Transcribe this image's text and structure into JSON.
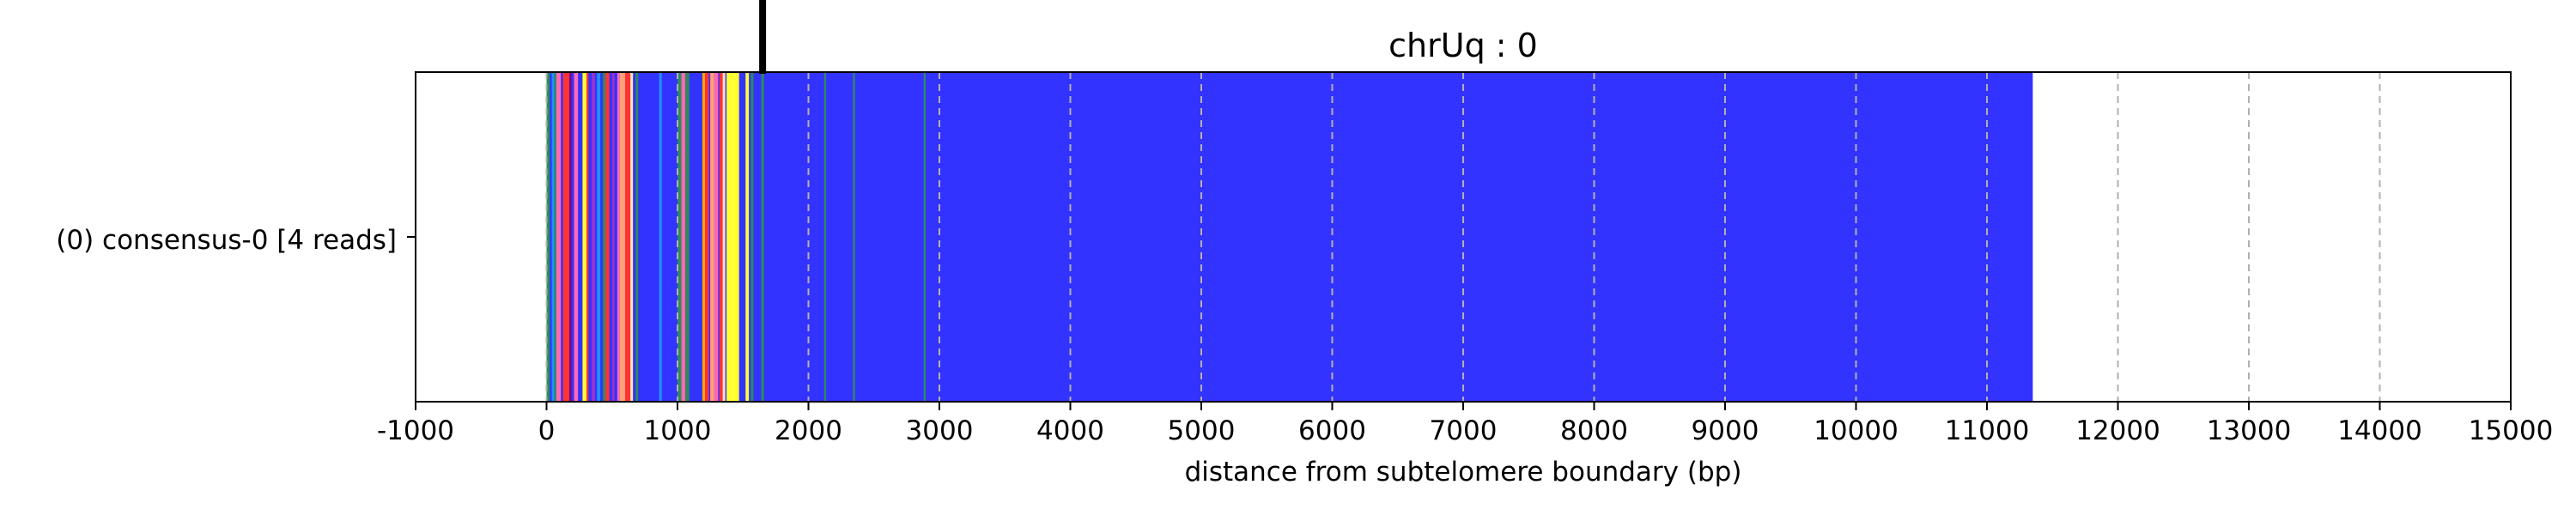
{
  "chart_data": {
    "type": "heatmap",
    "title": "chrUq : 0",
    "xlabel": "distance from subtelomere boundary (bp)",
    "ylabel": "",
    "xlim": [
      -1000,
      15000
    ],
    "xticks": [
      -1000,
      0,
      1000,
      2000,
      3000,
      4000,
      5000,
      6000,
      7000,
      8000,
      9000,
      10000,
      11000,
      12000,
      13000,
      14000,
      15000
    ],
    "tick_labels": [
      "-1000",
      "0",
      "1000",
      "2000",
      "3000",
      "4000",
      "5000",
      "6000",
      "7000",
      "8000",
      "9000",
      "10000",
      "11000",
      "12000",
      "13000",
      "14000",
      "15000"
    ],
    "vertical_gridlines": true,
    "rows": [
      {
        "label": "(0) consensus-0 [4 reads]"
      }
    ],
    "boundary_marker_x": 1650,
    "background_color": "#3333ff",
    "background_range": [
      0,
      11350
    ],
    "segments": [
      {
        "start": 0,
        "end": 25,
        "color": "#2e8b57"
      },
      {
        "start": 40,
        "end": 60,
        "color": "#1e90ff"
      },
      {
        "start": 60,
        "end": 75,
        "color": "#2e8b57"
      },
      {
        "start": 75,
        "end": 110,
        "color": "#ff69b4"
      },
      {
        "start": 110,
        "end": 125,
        "color": "#3333ff"
      },
      {
        "start": 125,
        "end": 175,
        "color": "#ff3333"
      },
      {
        "start": 175,
        "end": 190,
        "color": "#800080"
      },
      {
        "start": 190,
        "end": 210,
        "color": "#3333ff"
      },
      {
        "start": 210,
        "end": 240,
        "color": "#ff69b4"
      },
      {
        "start": 275,
        "end": 305,
        "color": "#ffff33"
      },
      {
        "start": 305,
        "end": 320,
        "color": "#ff3333"
      },
      {
        "start": 345,
        "end": 370,
        "color": "#9932cc"
      },
      {
        "start": 385,
        "end": 410,
        "color": "#1e90ff"
      },
      {
        "start": 430,
        "end": 450,
        "color": "#2e8b57"
      },
      {
        "start": 450,
        "end": 480,
        "color": "#ff3333"
      },
      {
        "start": 500,
        "end": 520,
        "color": "#9932cc"
      },
      {
        "start": 540,
        "end": 560,
        "color": "#ff69b4"
      },
      {
        "start": 560,
        "end": 600,
        "color": "#ffa07a"
      },
      {
        "start": 600,
        "end": 640,
        "color": "#ff3333"
      },
      {
        "start": 640,
        "end": 660,
        "color": "#ffe4b5"
      },
      {
        "start": 680,
        "end": 700,
        "color": "#2e8b57"
      },
      {
        "start": 860,
        "end": 880,
        "color": "#1e90ff"
      },
      {
        "start": 1000,
        "end": 1030,
        "color": "#2e8b57"
      },
      {
        "start": 1030,
        "end": 1060,
        "color": "#ff69b4"
      },
      {
        "start": 1060,
        "end": 1090,
        "color": "#2e8b57"
      },
      {
        "start": 1190,
        "end": 1210,
        "color": "#ffa500"
      },
      {
        "start": 1210,
        "end": 1240,
        "color": "#ff3333"
      },
      {
        "start": 1250,
        "end": 1280,
        "color": "#ffa07a"
      },
      {
        "start": 1280,
        "end": 1310,
        "color": "#ff69b4"
      },
      {
        "start": 1320,
        "end": 1345,
        "color": "#ff3333"
      },
      {
        "start": 1345,
        "end": 1365,
        "color": "#ffe4b5"
      },
      {
        "start": 1375,
        "end": 1470,
        "color": "#ffff33"
      },
      {
        "start": 1520,
        "end": 1545,
        "color": "#ffff33"
      },
      {
        "start": 1560,
        "end": 1580,
        "color": "#2e8b57"
      },
      {
        "start": 1640,
        "end": 1660,
        "color": "#2e8b57"
      },
      {
        "start": 2120,
        "end": 2135,
        "color": "#2e8b57"
      },
      {
        "start": 2340,
        "end": 2355,
        "color": "#2e8b57"
      },
      {
        "start": 2880,
        "end": 2895,
        "color": "#2e8b57"
      }
    ]
  }
}
